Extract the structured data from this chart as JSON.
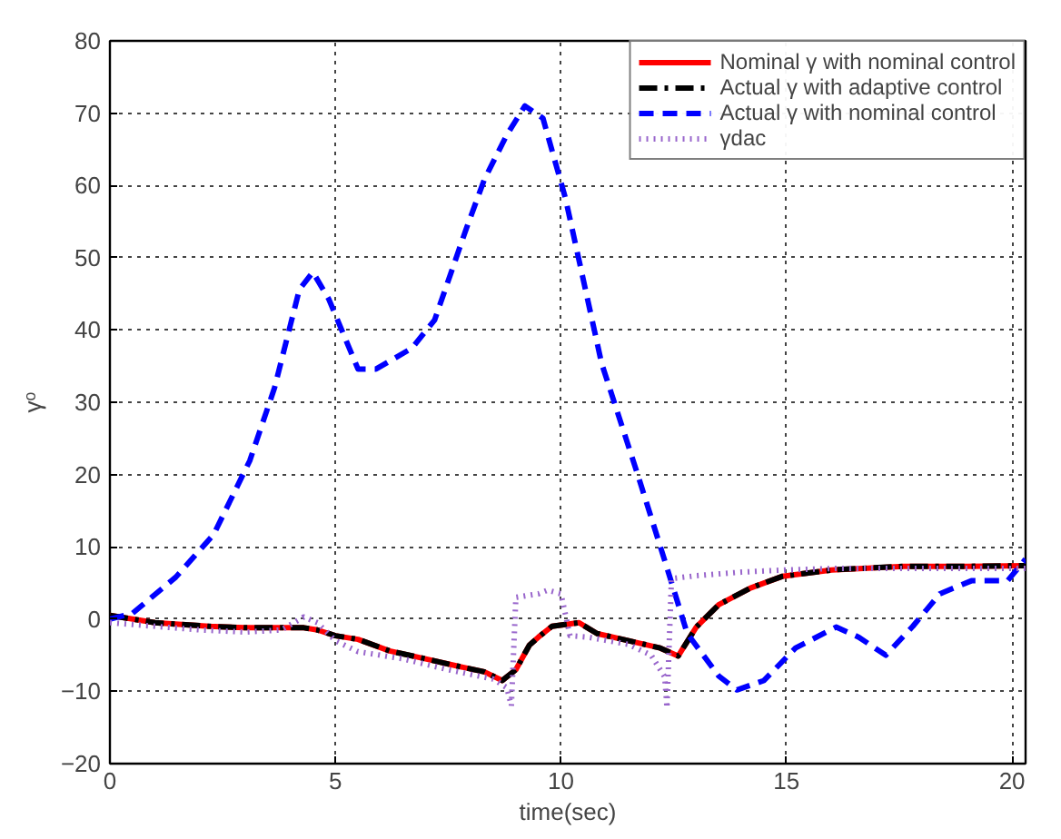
{
  "chart_data": {
    "type": "line",
    "xlabel": "time(sec)",
    "ylabel": "γᵒ",
    "xlim": [
      0,
      20.3
    ],
    "ylim": [
      -20,
      80
    ],
    "xticks": [
      0,
      5,
      10,
      15,
      20
    ],
    "yticks": [
      -20,
      -10,
      0,
      10,
      20,
      30,
      40,
      50,
      60,
      70,
      80
    ],
    "grid": true,
    "legend": "top right",
    "series": [
      {
        "name": "Nominal γ with nominal control",
        "color": "#ff0000",
        "line_style": "solid",
        "x": [
          0,
          1,
          2.2,
          3,
          4.3,
          4.6,
          5,
          5.5,
          6.2,
          7,
          7.7,
          8.3,
          8.7,
          9,
          9.3,
          9.5,
          9.8,
          10.4,
          10.8,
          11.5,
          12.2,
          12.6,
          13,
          13.5,
          14.2,
          14.9,
          16,
          17.6,
          19,
          20.3
        ],
        "values": [
          0.5,
          -0.5,
          -1,
          -1.2,
          -1.2,
          -1.5,
          -2.3,
          -2.8,
          -4.4,
          -5.5,
          -6.5,
          -7.3,
          -8.5,
          -7,
          -3.6,
          -2.5,
          -1,
          -0.5,
          -2,
          -3,
          -4,
          -5.1,
          -1.1,
          2,
          4.3,
          5.9,
          6.8,
          7.3,
          7.3,
          7.4
        ]
      },
      {
        "name": "Actual γ with adaptive control",
        "color": "#000000",
        "line_style": "dashdot",
        "x": [
          0,
          1,
          2.2,
          3,
          4.3,
          4.6,
          5,
          5.5,
          6.2,
          7,
          7.7,
          8.3,
          8.7,
          9,
          9.3,
          9.5,
          9.8,
          10.4,
          10.8,
          11.5,
          12.2,
          12.6,
          13,
          13.5,
          14.2,
          14.9,
          16,
          17.6,
          19,
          20.3
        ],
        "values": [
          0.5,
          -0.5,
          -1,
          -1.2,
          -1.2,
          -1.5,
          -2.3,
          -2.8,
          -4.4,
          -5.5,
          -6.5,
          -7.3,
          -8.5,
          -7,
          -3.6,
          -2.5,
          -1,
          -0.5,
          -2,
          -3,
          -4,
          -5.1,
          -1.1,
          2,
          4.3,
          5.9,
          6.8,
          7.3,
          7.3,
          7.4
        ]
      },
      {
        "name": "Actual γ with nominal control",
        "color": "#0000ff",
        "line_style": "dashed",
        "x": [
          0,
          0.5,
          1.46,
          2.3,
          3.1,
          3.65,
          4.2,
          4.5,
          4.85,
          5.5,
          5.9,
          6.7,
          7.2,
          7.9,
          8.3,
          8.8,
          9.2,
          9.6,
          10.1,
          10.9,
          11.7,
          12.3,
          12.8,
          13.5,
          13.9,
          14.5,
          15.2,
          16.1,
          16.6,
          17.2,
          17.8,
          18.4,
          19.1,
          19.9,
          20.3
        ],
        "values": [
          0,
          0.8,
          5.8,
          11.7,
          21.9,
          32,
          45.6,
          48,
          44.3,
          34.6,
          34.6,
          37.5,
          41.4,
          54,
          60.8,
          67,
          71,
          69.3,
          58.2,
          35.4,
          20,
          8.1,
          -2,
          -7.9,
          -9.8,
          -8.5,
          -4,
          -1.1,
          -2.5,
          -5,
          -1,
          3.5,
          5.3,
          5.3,
          8.3
        ]
      },
      {
        "name": "γdac",
        "color": "#9966cc",
        "line_style": "dotted",
        "x": [
          0,
          2,
          3,
          3.8,
          4.3,
          4.6,
          5,
          5.5,
          6.5,
          7.5,
          8.5,
          8.8,
          8.9,
          9.0,
          9.5,
          9.7,
          10,
          10.2,
          10.6,
          11.5,
          12,
          12.3,
          12.35,
          12.45,
          13,
          14,
          15,
          16,
          18,
          20.3
        ],
        "values": [
          -0.5,
          -1.5,
          -1.8,
          -1.5,
          0.3,
          -0.5,
          -3,
          -4.5,
          -5.5,
          -7,
          -8.3,
          -9.5,
          -12,
          3,
          3.5,
          4,
          3.5,
          -2.3,
          -2.5,
          -3.5,
          -5,
          -8,
          -12.3,
          5.6,
          6,
          6.5,
          6.8,
          7,
          7,
          7
        ]
      }
    ]
  }
}
